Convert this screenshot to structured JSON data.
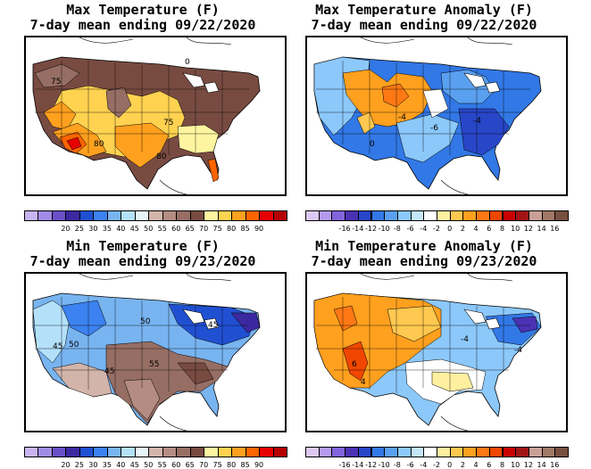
{
  "panels": [
    {
      "id": "max-temp",
      "title_line1": "Max Temperature (F)",
      "title_line2": "7-day mean ending 09/22/2020",
      "colorbar": {
        "colors": [
          "#c8b4f0",
          "#9f8ce6",
          "#6a50c8",
          "#3c28a0",
          "#2050d2",
          "#3c82f0",
          "#78b4f0",
          "#b4e1fa",
          "#e6f5fa",
          "#d2b4aa",
          "#b48c82",
          "#966e64",
          "#784b41",
          "#fff5a0",
          "#ffd250",
          "#ffa01e",
          "#ff6400",
          "#e60000",
          "#b40000"
        ],
        "labels": [
          "20",
          "25",
          "30",
          "35",
          "40",
          "45",
          "50",
          "55",
          "60",
          "65",
          "70",
          "75",
          "80",
          "85",
          "90"
        ]
      },
      "contour_labels": [
        "75",
        "75",
        "80",
        "80",
        "0"
      ]
    },
    {
      "id": "max-temp-anomaly",
      "title_line1": "Max Temperature Anomaly (F)",
      "title_line2": "7-day mean ending 09/22/2020",
      "colorbar": {
        "colors": [
          "#dcc8f5",
          "#b49bf0",
          "#8264dc",
          "#4b32b4",
          "#2846c8",
          "#3278e6",
          "#5aa0f0",
          "#8cc8fa",
          "#c3e6fa",
          "#ffffff",
          "#fff0a0",
          "#ffc850",
          "#ffa01e",
          "#ff7814",
          "#f04600",
          "#c80000",
          "#a01414",
          "#c8a096",
          "#a07866",
          "#785040"
        ],
        "labels": [
          "-16",
          "-14",
          "-12",
          "-10",
          "-8",
          "-6",
          "-4",
          "-2",
          "0",
          "2",
          "4",
          "6",
          "8",
          "10",
          "12",
          "14",
          "16"
        ]
      },
      "contour_labels": [
        "0",
        "-4",
        "-6",
        "-4"
      ]
    },
    {
      "id": "min-temp",
      "title_line1": "Min Temperature (F)",
      "title_line2": "7-day mean ending 09/23/2020",
      "colorbar": {
        "colors": [
          "#c8b4f0",
          "#9f8ce6",
          "#6a50c8",
          "#3c28a0",
          "#2050d2",
          "#3c82f0",
          "#78b4f0",
          "#b4e1fa",
          "#e6f5fa",
          "#d2b4aa",
          "#b48c82",
          "#966e64",
          "#784b41",
          "#fff5a0",
          "#ffd250",
          "#ffa01e",
          "#ff6400",
          "#e60000",
          "#b40000"
        ],
        "labels": [
          "20",
          "25",
          "30",
          "35",
          "40",
          "45",
          "50",
          "55",
          "60",
          "65",
          "70",
          "75",
          "80",
          "85",
          "90"
        ]
      },
      "contour_labels": [
        "50",
        "45",
        "45",
        "50",
        "45",
        "55"
      ]
    },
    {
      "id": "min-temp-anomaly",
      "title_line1": "Min Temperature Anomaly (F)",
      "title_line2": "7-day mean ending 09/23/2020",
      "colorbar": {
        "colors": [
          "#dcc8f5",
          "#b49bf0",
          "#8264dc",
          "#4b32b4",
          "#2846c8",
          "#3278e6",
          "#5aa0f0",
          "#8cc8fa",
          "#c3e6fa",
          "#ffffff",
          "#fff0a0",
          "#ffc850",
          "#ffa01e",
          "#ff7814",
          "#f04600",
          "#c80000",
          "#a01414",
          "#c8a096",
          "#a07866",
          "#785040"
        ],
        "labels": [
          "-16",
          "-14",
          "-12",
          "-10",
          "-8",
          "-6",
          "-4",
          "-2",
          "0",
          "2",
          "4",
          "6",
          "8",
          "10",
          "12",
          "14",
          "16"
        ]
      },
      "contour_labels": [
        "6",
        "4",
        "-4",
        "-4"
      ]
    }
  ],
  "map_colors": {
    "max_temp": {
      "west_high": "#784b41",
      "nw_mid": "#966e64",
      "plains": "#ffd250",
      "south": "#ffa01e",
      "desert": "#ff6400",
      "hot": "#e60000",
      "east": "#784b41",
      "southeast": "#fff5a0",
      "florida": "#ff6400"
    },
    "max_anom": {
      "west": "#8cc8fa",
      "plains": "#ffa01e",
      "central_white": "#ffffff",
      "east": "#3278e6",
      "southeast": "#2846c8",
      "south": "#5aa0f0",
      "ne": "#5aa0f0"
    },
    "min_temp": {
      "north": "#78b4f0",
      "west": "#b4e1fa",
      "nw": "#3c82f0",
      "ne": "#2050d2",
      "south": "#966e64",
      "southwest": "#d2b4aa",
      "texas": "#b48c82"
    },
    "min_anom": {
      "west": "#ffa01e",
      "central": "#ffc850",
      "hot": "#f04600",
      "east": "#8cc8fa",
      "ne": "#3278e6",
      "south": "#ffffff",
      "gulf": "#fff0a0"
    }
  }
}
